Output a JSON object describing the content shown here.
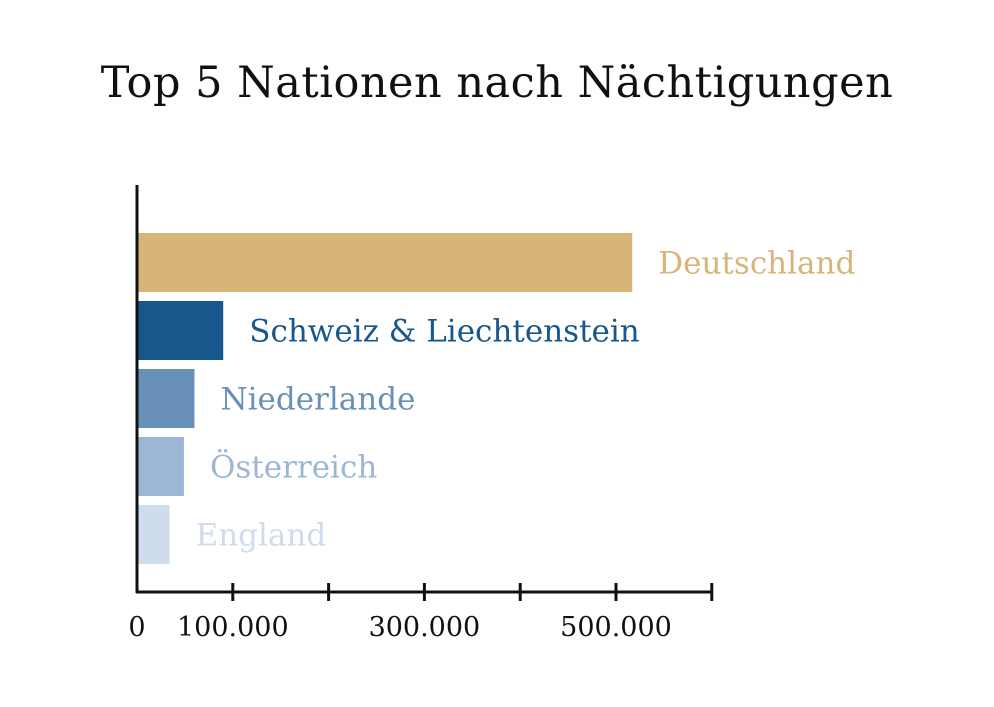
{
  "chart_data": {
    "type": "bar",
    "orientation": "horizontal",
    "title": "Top 5 Nationen nach Nächtigungen",
    "xlabel": "",
    "ylabel": "",
    "categories": [
      "Deutschland",
      "Schweiz & Liechtenstein",
      "Niederlande",
      "Österreich",
      "England"
    ],
    "values": [
      517000,
      90000,
      60000,
      49000,
      34000
    ],
    "colors": [
      "#d7b478",
      "#17578b",
      "#6890b9",
      "#9cb6d6",
      "#cfdceb"
    ],
    "xlim": [
      0,
      600000
    ],
    "xticks": [
      0,
      100000,
      200000,
      300000,
      400000,
      500000,
      600000
    ],
    "tick_labels": [
      {
        "value": 0,
        "label": "0"
      },
      {
        "value": 100000,
        "label": "100.000"
      },
      {
        "value": 300000,
        "label": "300.000"
      },
      {
        "value": 500000,
        "label": "500.000"
      }
    ],
    "grid": false,
    "legend": "none"
  }
}
